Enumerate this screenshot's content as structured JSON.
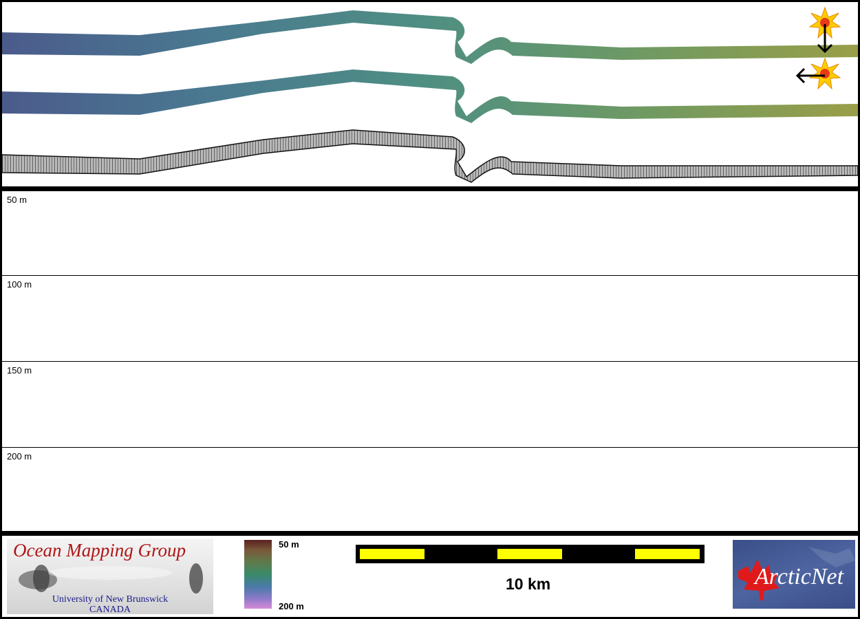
{
  "depth_rows": [
    {
      "label": "50 m"
    },
    {
      "label": "100 m"
    },
    {
      "label": "150 m"
    },
    {
      "label": "200 m"
    }
  ],
  "legend": {
    "colorbar_top_label": "50 m",
    "colorbar_bottom_label": "200 m",
    "scale_label": "10 km"
  },
  "logos": {
    "omg_title": "Ocean Mapping Group",
    "omg_university": "University of New Brunswick",
    "omg_country": "CANADA",
    "arcticnet_text": "ArcticNet"
  },
  "sun_icons": [
    {
      "icon": "sun-icon",
      "arrow": "arrow-down-icon"
    },
    {
      "icon": "sun-icon",
      "arrow": "arrow-left-icon"
    }
  ],
  "colors": {
    "scale_yellow": "#ffff00",
    "swath_west": "#4a5a8a",
    "swath_mid": "#4f8a7a",
    "swath_east": "#8a9a4a",
    "backscatter": "#1a1a1a"
  }
}
